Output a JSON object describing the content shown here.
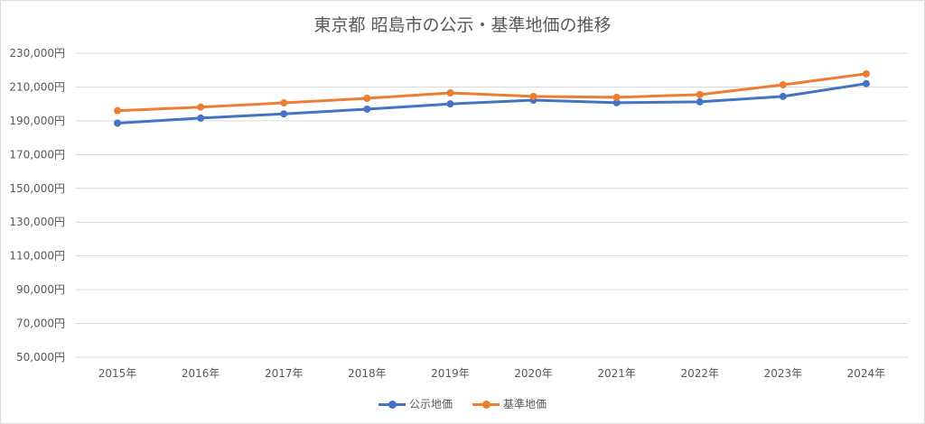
{
  "chart_data": {
    "type": "line",
    "title": "東京都 昭島市の公示・基準地価の推移",
    "categories": [
      "2015年",
      "2016年",
      "2017年",
      "2018年",
      "2019年",
      "2020年",
      "2021年",
      "2022年",
      "2023年",
      "2024年"
    ],
    "series": [
      {
        "name": "公示地価",
        "color": "#4472C4",
        "values": [
          188600,
          191600,
          194100,
          196900,
          200000,
          202200,
          200700,
          201200,
          204400,
          212000
        ]
      },
      {
        "name": "基準地価",
        "color": "#ED7D31",
        "values": [
          196000,
          198100,
          200600,
          203300,
          206500,
          204400,
          203900,
          205500,
          211300,
          217800
        ]
      }
    ],
    "ylim": [
      50000,
      230000
    ],
    "yticks": [
      230000,
      210000,
      190000,
      170000,
      150000,
      130000,
      110000,
      90000,
      70000,
      50000
    ],
    "ytick_labels": [
      "230,000円",
      "210,000円",
      "190,000円",
      "170,000円",
      "150,000円",
      "130,000円",
      "110,000円",
      "90,000円",
      "70,000円",
      "50,000円"
    ],
    "grid": true,
    "legend": "bottom-center"
  }
}
